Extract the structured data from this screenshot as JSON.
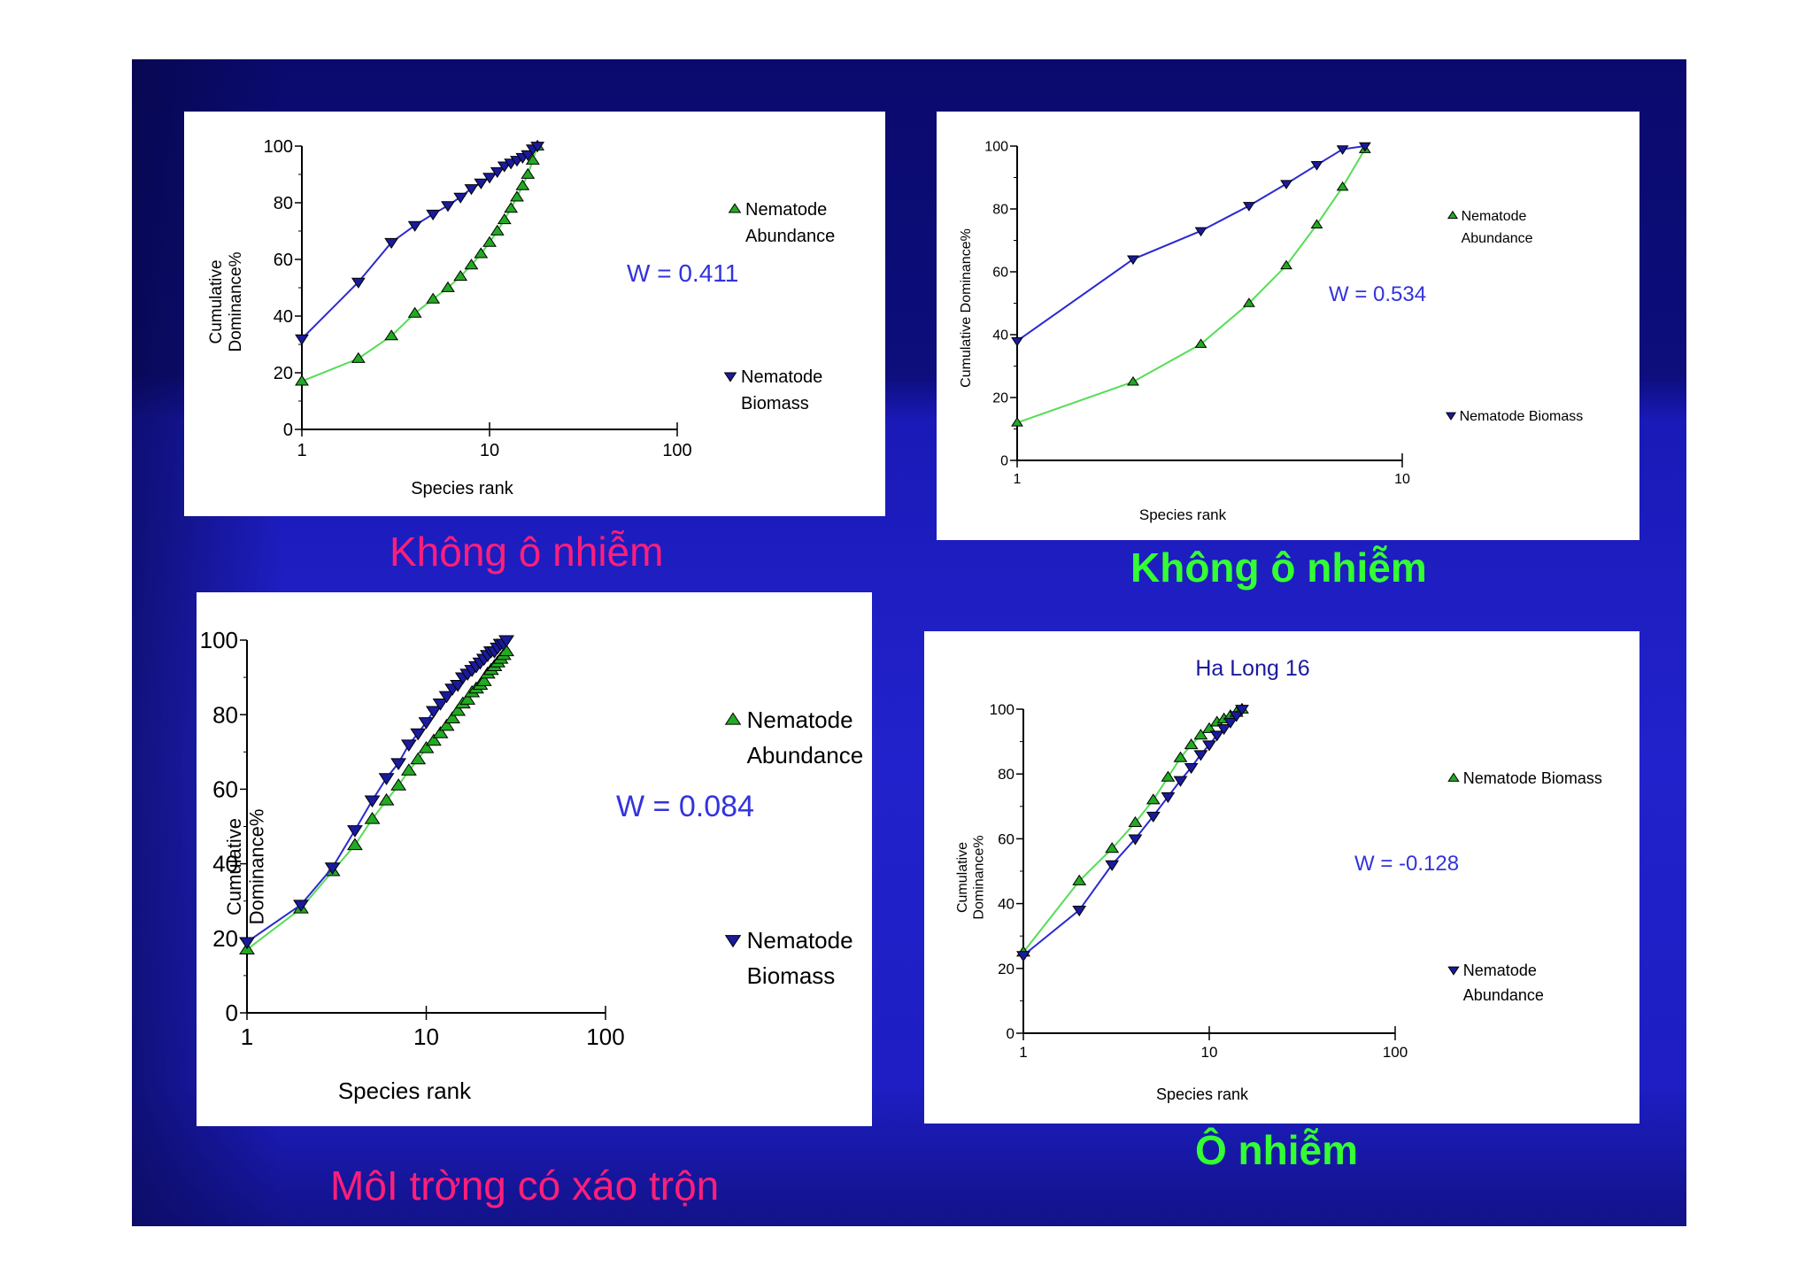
{
  "captions": {
    "top_left": "Không ô nhiễm",
    "top_right": "Không ô nhiễm",
    "bottom_left": "MôI trờng có xáo trộn",
    "bottom_right": "Ô nhiễm"
  },
  "colors": {
    "abundance_line": "#55dd55",
    "biomass_line": "#2a2ad0",
    "abundance_marker": "#22aa22",
    "biomass_marker": "#1a1a9c",
    "w_label": "#3333dd"
  },
  "chart_data": [
    {
      "type": "line",
      "title": "",
      "xlabel": "Species rank",
      "ylabel": "Cumulative Dominance%",
      "xscale": "log",
      "xlim": [
        1,
        100
      ],
      "ylim": [
        0,
        100
      ],
      "xticks": [
        "1",
        "10",
        "100"
      ],
      "yticks": [
        "0",
        "20",
        "40",
        "60",
        "80",
        "100"
      ],
      "annotation": "W = 0.411",
      "series": [
        {
          "name": "Nematode Abundance",
          "marker": "triangle-up",
          "x": [
            1,
            2,
            3,
            4,
            5,
            6,
            7,
            8,
            9,
            10,
            11,
            12,
            13,
            14,
            15,
            16,
            17,
            18
          ],
          "y": [
            17,
            25,
            33,
            41,
            46,
            50,
            54,
            58,
            62,
            66,
            70,
            74,
            78,
            82,
            86,
            90,
            95,
            100
          ]
        },
        {
          "name": "Nematode Biomass",
          "marker": "triangle-down",
          "x": [
            1,
            2,
            3,
            4,
            5,
            6,
            7,
            8,
            9,
            10,
            11,
            12,
            13,
            14,
            15,
            16,
            17,
            18
          ],
          "y": [
            32,
            52,
            66,
            72,
            76,
            79,
            82,
            85,
            87,
            89,
            91,
            93,
            94,
            95,
            96,
            97,
            99,
            100
          ]
        }
      ],
      "legend": [
        {
          "series": "Nematode Abundance",
          "lines": [
            "Nematode",
            "Abundance"
          ]
        },
        {
          "series": "Nematode Biomass",
          "lines": [
            "Nematode",
            "Biomass"
          ]
        }
      ]
    },
    {
      "type": "line",
      "title": "",
      "xlabel": "Species rank",
      "ylabel": "Cumulative Dominance%",
      "xscale": "log",
      "xlim": [
        1,
        10
      ],
      "ylim": [
        0,
        100
      ],
      "xticks": [
        "1",
        "10"
      ],
      "yticks": [
        "0",
        "20",
        "40",
        "60",
        "80",
        "100"
      ],
      "annotation": "W = 0.534",
      "series": [
        {
          "name": "Nematode Abundance",
          "marker": "triangle-up",
          "x": [
            1,
            2,
            3,
            4,
            5,
            6,
            7,
            8
          ],
          "y": [
            12,
            25,
            37,
            50,
            62,
            75,
            87,
            99
          ]
        },
        {
          "name": "Nematode Biomass",
          "marker": "triangle-down",
          "x": [
            1,
            2,
            3,
            4,
            5,
            6,
            7,
            8
          ],
          "y": [
            38,
            64,
            73,
            81,
            88,
            94,
            99,
            100
          ]
        }
      ],
      "legend": [
        {
          "series": "Nematode Abundance",
          "lines": [
            "Nematode",
            "Abundance"
          ]
        },
        {
          "series": "Nematode Biomass",
          "lines": [
            "Nematode Biomass"
          ]
        }
      ]
    },
    {
      "type": "line",
      "title": "",
      "xlabel": "Species rank",
      "ylabel": "Cumulative Dominance%",
      "xscale": "log",
      "xlim": [
        1,
        100
      ],
      "ylim": [
        0,
        100
      ],
      "xticks": [
        "1",
        "10",
        "100"
      ],
      "yticks": [
        "0",
        "20",
        "40",
        "60",
        "80",
        "100"
      ],
      "annotation": "W = 0.084",
      "series": [
        {
          "name": "Nematode Abundance",
          "marker": "triangle-up",
          "x": [
            1,
            2,
            3,
            4,
            5,
            6,
            7,
            8,
            9,
            10,
            11,
            12,
            13,
            14,
            15,
            16,
            17,
            18,
            19,
            20,
            21,
            22,
            23,
            24,
            25,
            26,
            27,
            28
          ],
          "y": [
            17,
            28,
            38,
            45,
            52,
            57,
            61,
            65,
            68,
            71,
            73,
            75,
            77,
            79,
            81,
            83,
            84,
            86,
            87,
            88,
            89,
            91,
            92,
            93,
            94,
            95,
            96,
            97
          ]
        },
        {
          "name": "Nematode Biomass",
          "marker": "triangle-down",
          "x": [
            1,
            2,
            3,
            4,
            5,
            6,
            7,
            8,
            9,
            10,
            11,
            12,
            13,
            14,
            15,
            16,
            17,
            18,
            19,
            20,
            21,
            22,
            23,
            24,
            25,
            26,
            27,
            28
          ],
          "y": [
            19,
            29,
            39,
            49,
            57,
            63,
            67,
            72,
            75,
            78,
            81,
            83,
            85,
            87,
            88,
            90,
            91,
            92,
            93,
            94,
            95,
            96,
            97,
            97,
            98,
            99,
            99,
            100
          ]
        }
      ],
      "legend": [
        {
          "series": "Nematode Abundance",
          "lines": [
            "Nematode",
            "Abundance"
          ]
        },
        {
          "series": "Nematode Biomass",
          "lines": [
            "Nematode",
            "Biomass"
          ]
        }
      ]
    },
    {
      "type": "line",
      "title": "Ha Long 16",
      "xlabel": "Species rank",
      "ylabel": "Cumulative Dominance%",
      "xscale": "log",
      "xlim": [
        1,
        100
      ],
      "ylim": [
        0,
        100
      ],
      "xticks": [
        "1",
        "10",
        "100"
      ],
      "yticks": [
        "0",
        "20",
        "40",
        "60",
        "80",
        "100"
      ],
      "annotation": "W = -0.128",
      "series": [
        {
          "name": "Nematode Biomass",
          "marker": "triangle-up",
          "x": [
            1,
            2,
            3,
            4,
            5,
            6,
            7,
            8,
            9,
            10,
            11,
            12,
            13,
            14,
            15
          ],
          "y": [
            25,
            47,
            57,
            65,
            72,
            79,
            85,
            89,
            92,
            94,
            96,
            97,
            98,
            99,
            100
          ]
        },
        {
          "name": "Nematode Abundance",
          "marker": "triangle-down",
          "x": [
            1,
            2,
            3,
            4,
            5,
            6,
            7,
            8,
            9,
            10,
            11,
            12,
            13,
            14,
            15
          ],
          "y": [
            24,
            38,
            52,
            60,
            67,
            73,
            78,
            82,
            86,
            89,
            92,
            94,
            96,
            98,
            100
          ]
        }
      ],
      "legend": [
        {
          "series": "Nematode Biomass",
          "lines": [
            "Nematode Biomass"
          ]
        },
        {
          "series": "Nematode Abundance",
          "lines": [
            "Nematode",
            "Abundance"
          ]
        }
      ]
    }
  ]
}
